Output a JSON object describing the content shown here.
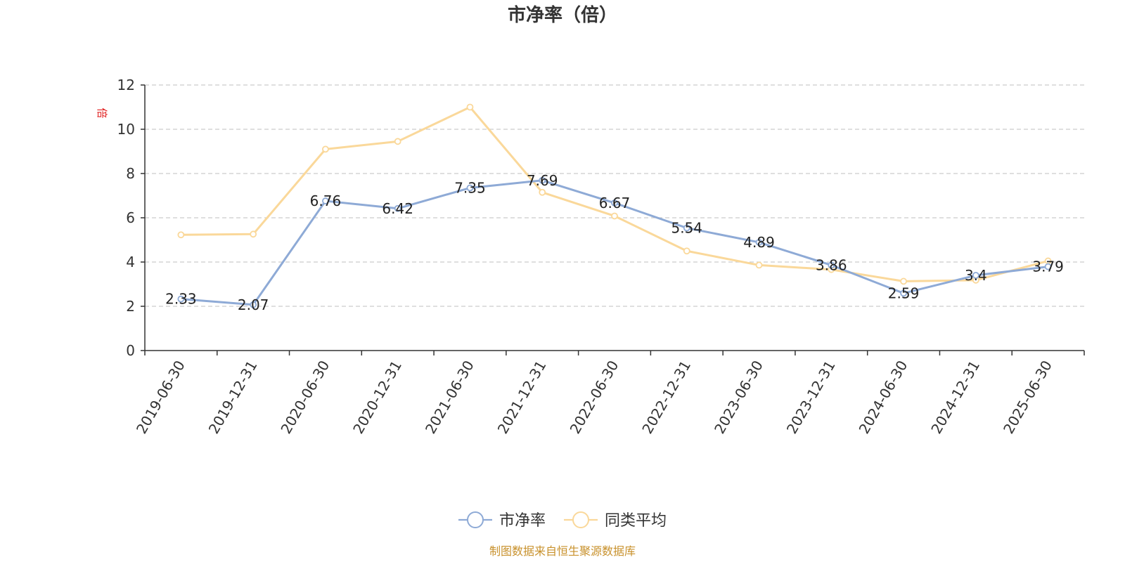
{
  "chart_data": {
    "type": "line",
    "title": "市净率（倍）",
    "ylabel": "倍",
    "xlabel": "",
    "ylim": [
      0,
      12
    ],
    "yticks": [
      0,
      2,
      4,
      6,
      8,
      10,
      12
    ],
    "grid": true,
    "legend_position": "bottom-center",
    "categories": [
      "2019-06-30",
      "2019-12-31",
      "2020-06-30",
      "2020-12-31",
      "2021-06-30",
      "2021-12-31",
      "2022-06-30",
      "2022-12-31",
      "2023-06-30",
      "2023-12-31",
      "2024-06-30",
      "2024-12-31",
      "2025-06-30"
    ],
    "series": [
      {
        "name": "市净率",
        "color": "#8eaad6",
        "values": [
          2.33,
          2.07,
          6.76,
          6.42,
          7.35,
          7.69,
          6.67,
          5.54,
          4.89,
          3.86,
          2.59,
          3.4,
          3.79
        ],
        "labels": [
          "2.33",
          "2.07",
          "6.76",
          "6.42",
          "7.35",
          "7.69",
          "6.67",
          "5.54",
          "4.89",
          "3.86",
          "2.59",
          "3.4",
          "3.79"
        ],
        "show_labels": true
      },
      {
        "name": "同类平均",
        "color": "#fad89a",
        "values": [
          5.23,
          5.26,
          9.1,
          9.45,
          11.0,
          7.15,
          6.08,
          4.5,
          3.86,
          3.66,
          3.13,
          3.18,
          4.05
        ],
        "show_labels": false
      }
    ]
  },
  "source_note": "制图数据来自恒生聚源数据库"
}
